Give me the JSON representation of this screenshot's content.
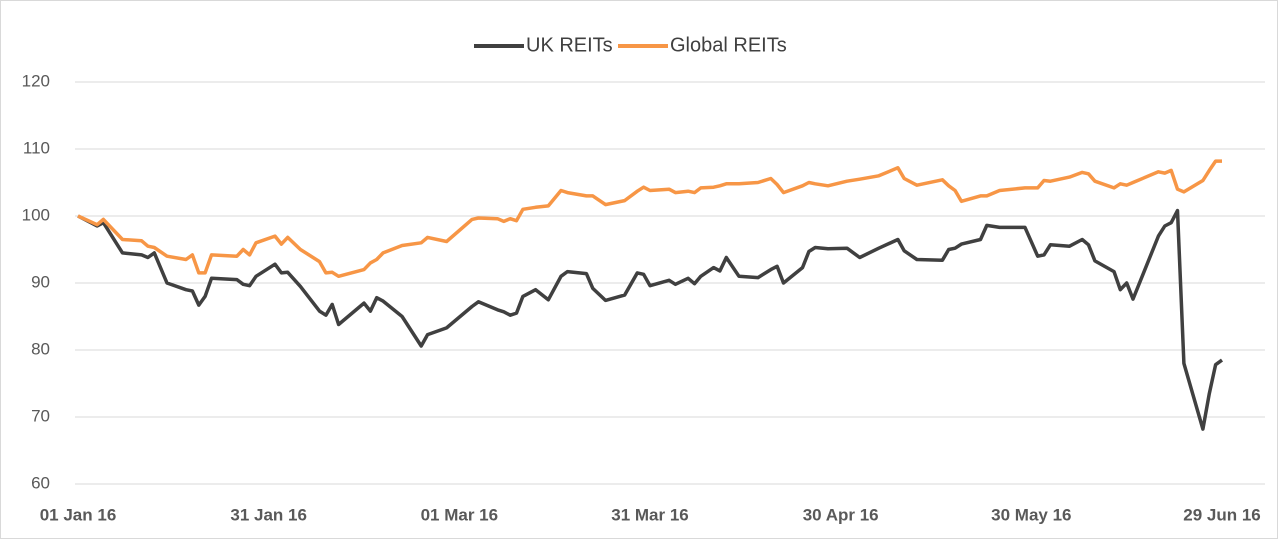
{
  "chart_data": {
    "type": "line",
    "x": [
      "2016-01-01",
      "2016-01-04",
      "2016-01-05",
      "2016-01-08",
      "2016-01-11",
      "2016-01-12",
      "2016-01-13",
      "2016-01-15",
      "2016-01-18",
      "2016-01-19",
      "2016-01-20",
      "2016-01-21",
      "2016-01-22",
      "2016-01-26",
      "2016-01-27",
      "2016-01-28",
      "2016-01-29",
      "2016-02-01",
      "2016-02-02",
      "2016-02-03",
      "2016-02-05",
      "2016-02-08",
      "2016-02-09",
      "2016-02-10",
      "2016-02-11",
      "2016-02-15",
      "2016-02-16",
      "2016-02-17",
      "2016-02-18",
      "2016-02-21",
      "2016-02-24",
      "2016-02-25",
      "2016-02-28",
      "2016-03-03",
      "2016-03-04",
      "2016-03-07",
      "2016-03-08",
      "2016-03-09",
      "2016-03-10",
      "2016-03-11",
      "2016-03-13",
      "2016-03-15",
      "2016-03-17",
      "2016-03-18",
      "2016-03-21",
      "2016-03-22",
      "2016-03-24",
      "2016-03-27",
      "2016-03-29",
      "2016-03-30",
      "2016-03-31",
      "2016-04-03",
      "2016-04-04",
      "2016-04-06",
      "2016-04-07",
      "2016-04-08",
      "2016-04-10",
      "2016-04-11",
      "2016-04-12",
      "2016-04-14",
      "2016-04-17",
      "2016-04-19",
      "2016-04-20",
      "2016-04-21",
      "2016-04-24",
      "2016-04-25",
      "2016-04-26",
      "2016-04-28",
      "2016-05-01",
      "2016-05-03",
      "2016-05-06",
      "2016-05-09",
      "2016-05-10",
      "2016-05-12",
      "2016-05-16",
      "2016-05-17",
      "2016-05-18",
      "2016-05-19",
      "2016-05-22",
      "2016-05-23",
      "2016-05-25",
      "2016-05-29",
      "2016-05-31",
      "2016-06-01",
      "2016-06-02",
      "2016-06-05",
      "2016-06-07",
      "2016-06-08",
      "2016-06-09",
      "2016-06-12",
      "2016-06-13",
      "2016-06-14",
      "2016-06-15",
      "2016-06-19",
      "2016-06-20",
      "2016-06-21",
      "2016-06-22",
      "2016-06-23",
      "2016-06-26",
      "2016-06-27",
      "2016-06-28",
      "2016-06-29"
    ],
    "series": [
      {
        "name": "UK REITs",
        "color": "#404040",
        "values": [
          100,
          98.5,
          99,
          94.5,
          94.2,
          93.8,
          94.5,
          90,
          89,
          88.8,
          86.7,
          88,
          90.7,
          90.5,
          89.8,
          89.6,
          91,
          92.8,
          91.5,
          91.6,
          89.5,
          85.8,
          85.2,
          86.8,
          83.8,
          87,
          85.8,
          87.8,
          87.3,
          85,
          80.6,
          82.3,
          83.3,
          86.5,
          87.2,
          86,
          85.7,
          85.2,
          85.5,
          88,
          89,
          87.5,
          91,
          91.7,
          91.4,
          89.2,
          87.4,
          88.2,
          91.5,
          91.3,
          89.6,
          90.4,
          89.8,
          90.7,
          89.9,
          91,
          92.3,
          91.8,
          93.8,
          91,
          90.8,
          92,
          92.5,
          90,
          92.3,
          94.7,
          95.3,
          95.1,
          95.2,
          93.8,
          95.2,
          96.5,
          94.8,
          93.5,
          93.4,
          95,
          95.2,
          95.8,
          96.5,
          98.6,
          98.3,
          98.3,
          94,
          94.2,
          95.7,
          95.5,
          96.5,
          95.7,
          93.3,
          91.7,
          89,
          90,
          87.6,
          97,
          98.5,
          99,
          100.8,
          78,
          68.2,
          73.5,
          77.8,
          78.5
        ]
      },
      {
        "name": "Global REITs",
        "color": "#f79646",
        "values": [
          100,
          98.7,
          99.5,
          96.5,
          96.3,
          95.5,
          95.3,
          94,
          93.5,
          94.2,
          91.5,
          91.5,
          94.2,
          94,
          95,
          94.2,
          96,
          97,
          95.8,
          96.8,
          95,
          93.2,
          91.5,
          91.6,
          91,
          92,
          93,
          93.5,
          94.5,
          95.6,
          96,
          96.8,
          96.2,
          99.5,
          99.7,
          99.6,
          99.2,
          99.6,
          99.3,
          101,
          101.3,
          101.5,
          103.8,
          103.5,
          103,
          103,
          101.7,
          102.3,
          103.7,
          104.3,
          103.8,
          104,
          103.5,
          103.7,
          103.5,
          104.2,
          104.3,
          104.5,
          104.8,
          104.8,
          105,
          105.6,
          104.7,
          103.5,
          104.5,
          105,
          104.8,
          104.5,
          105.2,
          105.5,
          106,
          107.2,
          105.6,
          104.6,
          105.4,
          104.5,
          103.8,
          102.2,
          103,
          103,
          103.8,
          104.2,
          104.2,
          105.3,
          105.2,
          105.8,
          106.5,
          106.3,
          105.2,
          104.2,
          104.8,
          104.6,
          105,
          106.6,
          106.4,
          106.8,
          104,
          103.6,
          105.3,
          106.8,
          108.2,
          108.2
        ]
      }
    ],
    "xlim": [
      "2016-01-01",
      "2016-06-29"
    ],
    "xticks": [
      {
        "value": "2016-01-01",
        "label": "01 Jan 16"
      },
      {
        "value": "2016-01-31",
        "label": "31 Jan 16"
      },
      {
        "value": "2016-03-01",
        "label": "01 Mar 16"
      },
      {
        "value": "2016-03-31",
        "label": "31 Mar 16"
      },
      {
        "value": "2016-04-30",
        "label": "30 Apr 16"
      },
      {
        "value": "2016-05-30",
        "label": "30 May 16"
      },
      {
        "value": "2016-06-29",
        "label": "29 Jun 16"
      }
    ],
    "ylim": [
      60,
      120
    ],
    "yticks": [
      60,
      70,
      80,
      90,
      100,
      110,
      120
    ],
    "grid": true,
    "legend": "top"
  }
}
